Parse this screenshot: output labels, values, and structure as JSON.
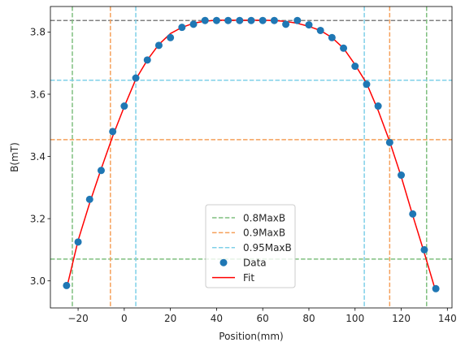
{
  "chart_data": {
    "type": "scatter",
    "title": "",
    "xlabel": "Position(mm)",
    "ylabel": "B(mT)",
    "xlim": [
      -32,
      142
    ],
    "ylim": [
      2.913,
      3.882
    ],
    "xticks": [
      -20,
      0,
      20,
      40,
      60,
      80,
      100,
      120,
      140
    ],
    "xtick_labels": [
      "−20",
      "0",
      "20",
      "40",
      "60",
      "80",
      "100",
      "120",
      "140"
    ],
    "yticks": [
      3.0,
      3.2,
      3.4,
      3.6,
      3.8
    ],
    "ytick_labels": [
      "3.0",
      "3.2",
      "3.4",
      "3.6",
      "3.8"
    ],
    "grid": false,
    "legend_position": "lower center",
    "series": [
      {
        "name": "Data",
        "kind": "scatter",
        "color": "#1f77b4",
        "x": [
          -25,
          -20,
          -15,
          -10,
          -5,
          0,
          5,
          10,
          15,
          20,
          25,
          30,
          35,
          40,
          45,
          50,
          55,
          60,
          65,
          70,
          75,
          80,
          85,
          90,
          95,
          100,
          105,
          110,
          115,
          120,
          125,
          130,
          135
        ],
        "y": [
          2.985,
          3.125,
          3.262,
          3.355,
          3.48,
          3.562,
          3.652,
          3.71,
          3.757,
          3.782,
          3.815,
          3.825,
          3.837,
          3.837,
          3.837,
          3.837,
          3.837,
          3.837,
          3.837,
          3.825,
          3.837,
          3.823,
          3.805,
          3.782,
          3.748,
          3.69,
          3.632,
          3.562,
          3.445,
          3.34,
          3.215,
          3.1,
          2.975
        ]
      },
      {
        "name": "Fit",
        "kind": "line",
        "color": "#ff0000",
        "x": [
          -25,
          -20,
          -15,
          -10,
          -5,
          0,
          5,
          10,
          15,
          20,
          25,
          30,
          35,
          40,
          45,
          50,
          55,
          60,
          65,
          70,
          75,
          80,
          85,
          90,
          95,
          100,
          105,
          110,
          115,
          120,
          125,
          130,
          135
        ],
        "y": [
          2.975,
          3.13,
          3.25,
          3.36,
          3.465,
          3.56,
          3.648,
          3.71,
          3.76,
          3.795,
          3.815,
          3.828,
          3.835,
          3.838,
          3.838,
          3.838,
          3.838,
          3.838,
          3.837,
          3.834,
          3.828,
          3.818,
          3.805,
          3.782,
          3.748,
          3.695,
          3.635,
          3.548,
          3.448,
          3.335,
          3.21,
          3.09,
          2.965
        ]
      }
    ],
    "reference_lines": [
      {
        "name": "MaxB",
        "orientation": "horizontal",
        "value": 3.837,
        "color": "#808080",
        "in_legend": false
      },
      {
        "name": "0.8MaxB",
        "orientation": "horizontal",
        "value": 3.07,
        "color": "#7fbf7f",
        "in_legend": true
      },
      {
        "name": "0.8MaxB",
        "orientation": "vertical",
        "value": -22.5,
        "color": "#7fbf7f",
        "in_legend": false
      },
      {
        "name": "0.8MaxB",
        "orientation": "vertical",
        "value": 131,
        "color": "#7fbf7f",
        "in_legend": false
      },
      {
        "name": "0.9MaxB",
        "orientation": "horizontal",
        "value": 3.454,
        "color": "#f5a05a",
        "in_legend": true
      },
      {
        "name": "0.9MaxB",
        "orientation": "vertical",
        "value": -6,
        "color": "#f5a05a",
        "in_legend": false
      },
      {
        "name": "0.9MaxB",
        "orientation": "vertical",
        "value": 115,
        "color": "#f5a05a",
        "in_legend": false
      },
      {
        "name": "0.95MaxB",
        "orientation": "horizontal",
        "value": 3.645,
        "color": "#7fd0e8",
        "in_legend": true
      },
      {
        "name": "0.95MaxB",
        "orientation": "vertical",
        "value": 5,
        "color": "#7fd0e8",
        "in_legend": false
      },
      {
        "name": "0.95MaxB",
        "orientation": "vertical",
        "value": 104,
        "color": "#7fd0e8",
        "in_legend": false
      }
    ],
    "legend": [
      {
        "label": "0.8MaxB",
        "kind": "dashed-line",
        "color": "#7fbf7f"
      },
      {
        "label": "0.9MaxB",
        "kind": "dashed-line",
        "color": "#f5a05a"
      },
      {
        "label": "0.95MaxB",
        "kind": "dashed-line",
        "color": "#7fd0e8"
      },
      {
        "label": "Data",
        "kind": "marker",
        "color": "#1f77b4"
      },
      {
        "label": "Fit",
        "kind": "line",
        "color": "#ff0000"
      }
    ]
  }
}
